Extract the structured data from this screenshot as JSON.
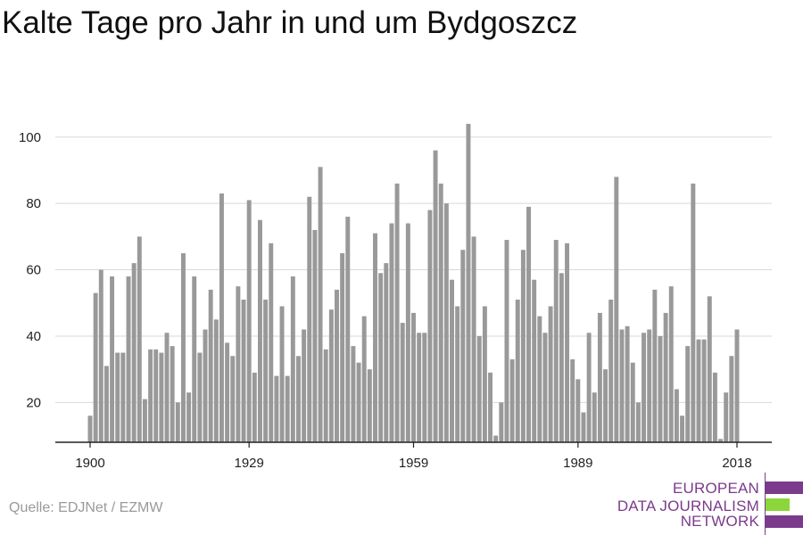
{
  "chart_data": {
    "type": "bar",
    "title": "Kalte Tage pro Jahr in und um Bydgoszcz",
    "source": "Quelle: EDJNet / EZMW",
    "x": [
      1900,
      1901,
      1902,
      1903,
      1904,
      1905,
      1906,
      1907,
      1908,
      1909,
      1910,
      1911,
      1912,
      1913,
      1914,
      1915,
      1916,
      1917,
      1918,
      1919,
      1920,
      1921,
      1922,
      1923,
      1924,
      1925,
      1926,
      1927,
      1928,
      1929,
      1930,
      1931,
      1932,
      1933,
      1934,
      1935,
      1936,
      1937,
      1938,
      1939,
      1940,
      1941,
      1942,
      1943,
      1944,
      1945,
      1946,
      1947,
      1948,
      1949,
      1950,
      1951,
      1952,
      1953,
      1954,
      1955,
      1956,
      1957,
      1958,
      1959,
      1960,
      1961,
      1962,
      1963,
      1964,
      1965,
      1966,
      1967,
      1968,
      1969,
      1970,
      1971,
      1972,
      1973,
      1974,
      1975,
      1976,
      1977,
      1978,
      1979,
      1980,
      1981,
      1982,
      1983,
      1984,
      1985,
      1986,
      1987,
      1988,
      1989,
      1990,
      1991,
      1992,
      1993,
      1994,
      1995,
      1996,
      1997,
      1998,
      1999,
      2000,
      2001,
      2002,
      2003,
      2004,
      2005,
      2006,
      2007,
      2008,
      2009,
      2010,
      2011,
      2012,
      2013,
      2014,
      2015,
      2016,
      2017,
      2018
    ],
    "values": [
      16,
      53,
      60,
      31,
      58,
      35,
      35,
      58,
      62,
      70,
      21,
      36,
      36,
      35,
      41,
      37,
      20,
      65,
      23,
      58,
      35,
      42,
      54,
      45,
      83,
      38,
      34,
      55,
      51,
      81,
      29,
      75,
      51,
      68,
      28,
      49,
      28,
      58,
      34,
      42,
      82,
      72,
      91,
      36,
      48,
      54,
      65,
      76,
      37,
      32,
      46,
      30,
      71,
      59,
      62,
      74,
      86,
      44,
      74,
      47,
      41,
      41,
      78,
      96,
      86,
      80,
      57,
      49,
      66,
      104,
      70,
      40,
      49,
      29,
      10,
      20,
      69,
      33,
      51,
      66,
      79,
      57,
      46,
      41,
      49,
      69,
      59,
      68,
      33,
      27,
      17,
      41,
      23,
      47,
      30,
      51,
      88,
      42,
      43,
      32,
      20,
      41,
      42,
      54,
      40,
      47,
      55,
      24,
      16,
      37,
      86,
      39,
      39,
      52,
      29,
      9,
      23,
      34,
      42
    ],
    "x_ticks": [
      "1900",
      "1929",
      "1959",
      "1989",
      "2018"
    ],
    "y_ticks": [
      "20",
      "40",
      "60",
      "80",
      "100"
    ],
    "xlim": [
      1900,
      2018
    ],
    "ylim": [
      8,
      108
    ],
    "grid": true,
    "bar_color": "#999999"
  },
  "logo": {
    "lines": [
      "EUROPEAN",
      "DATA JOURNALISM",
      "NETWORK"
    ],
    "colors": {
      "text": "#7b3b8c",
      "bar_purple": "#7b3b8c",
      "bar_green": "#8bd63a"
    }
  }
}
